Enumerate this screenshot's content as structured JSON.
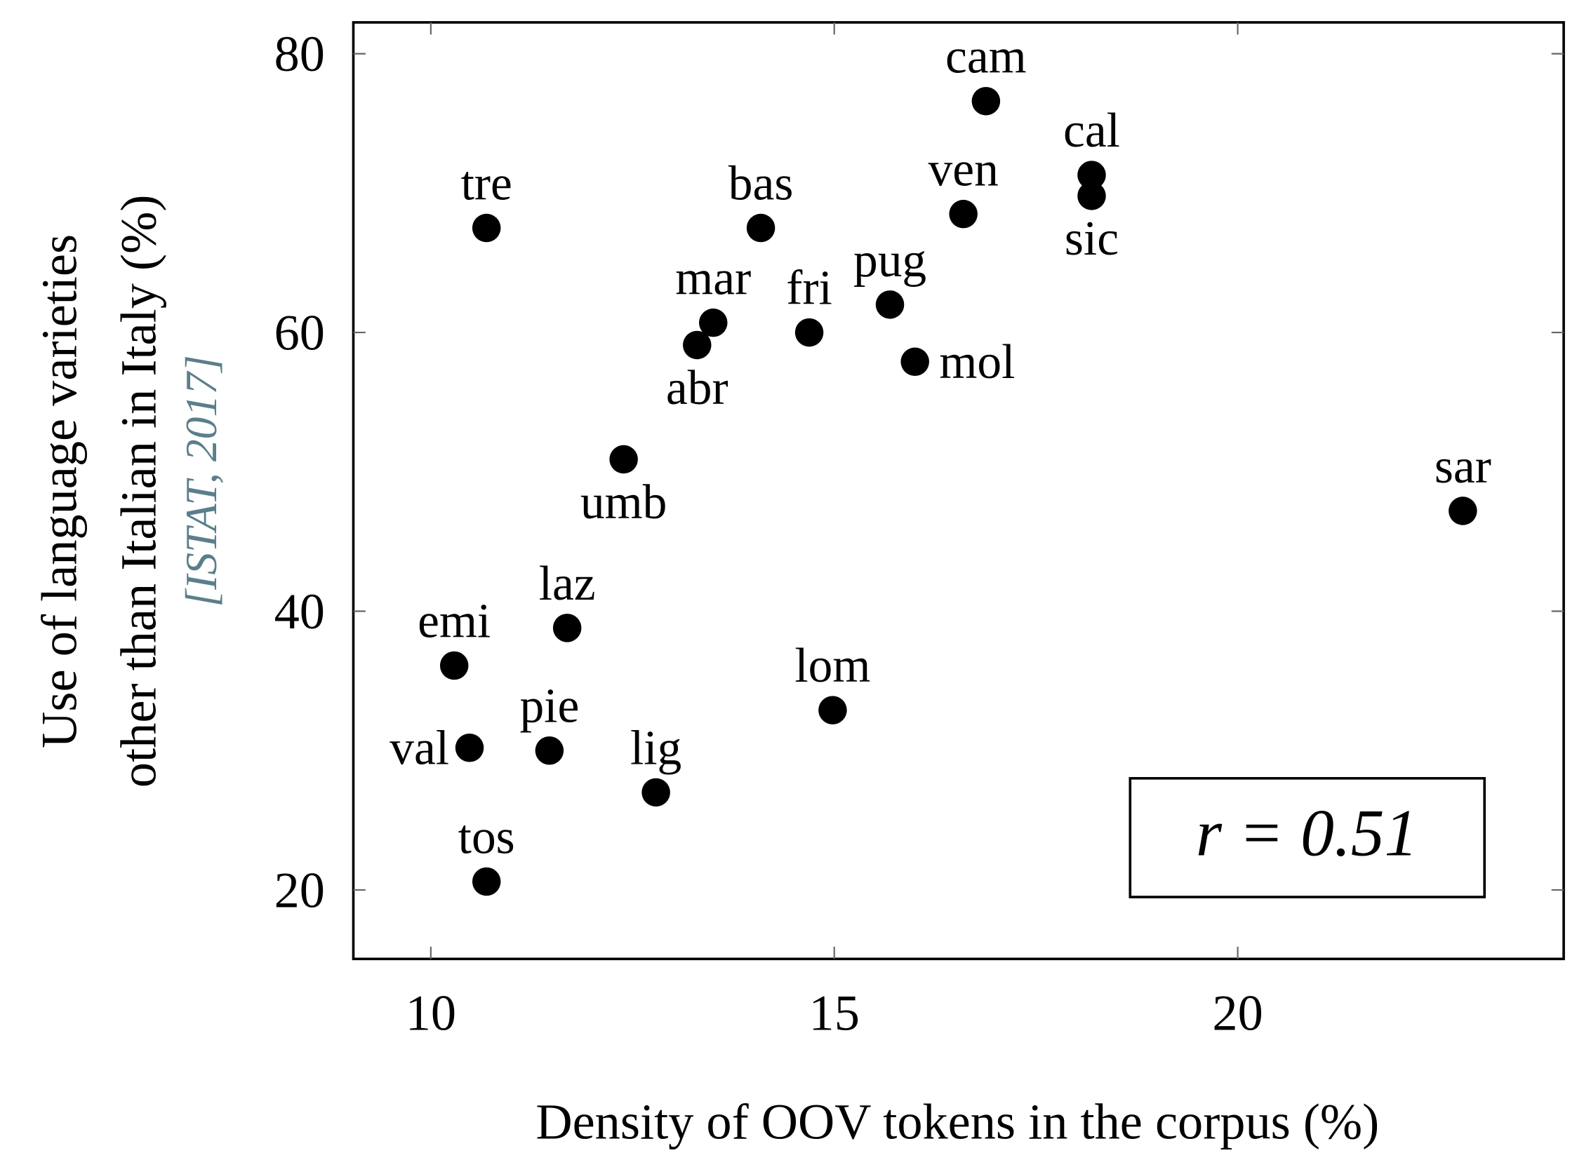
{
  "chart_data": {
    "type": "scatter",
    "x_label": "Density of OOV tokens in the corpus (%)",
    "y_label": [
      "Use of language varieties",
      "other than Italian in Italy (%)"
    ],
    "y_label_citation": "[ISTAT, 2017]",
    "annotation": "r = 0.51",
    "color": "#000000",
    "labels": [
      "cam",
      "cal",
      "sic",
      "ven",
      "tre",
      "bas",
      "pug",
      "mar",
      "fri",
      "abr",
      "mol",
      "umb",
      "sar",
      "laz",
      "emi",
      "lom",
      "val",
      "pie",
      "lig",
      "tos"
    ],
    "x": [
      16.88,
      18.19,
      18.19,
      16.6,
      10.69,
      14.09,
      15.69,
      13.5,
      14.69,
      13.3,
      16.0,
      12.39,
      22.79,
      11.69,
      10.29,
      14.98,
      10.48,
      11.47,
      12.79,
      10.69
    ],
    "values": [
      76.6,
      71.3,
      69.8,
      68.5,
      67.5,
      67.5,
      62.0,
      60.7,
      60.0,
      59.1,
      57.9,
      50.9,
      47.2,
      38.8,
      36.1,
      32.9,
      30.2,
      30.0,
      27.0,
      20.6
    ],
    "xlim": [
      9.04,
      24.04
    ],
    "ylim": [
      15.05,
      82.25
    ],
    "xticks": [
      10,
      15,
      20
    ],
    "yticks": [
      20,
      40,
      60,
      80
    ]
  }
}
